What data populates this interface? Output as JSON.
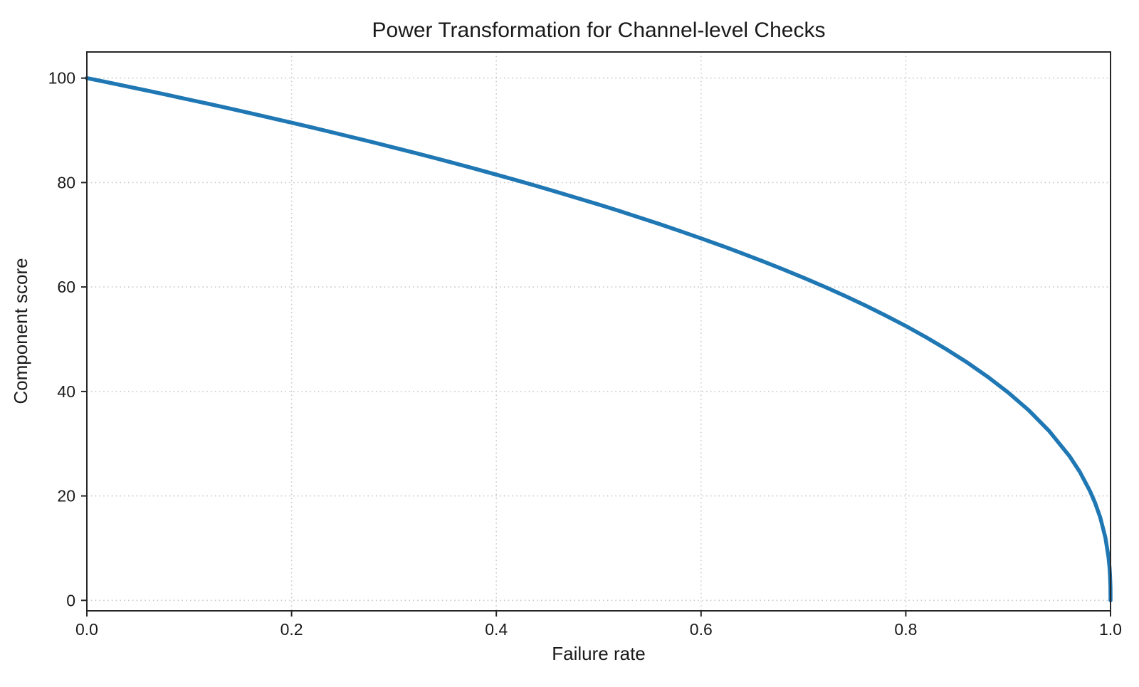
{
  "chart_data": {
    "type": "line",
    "title": "Power Transformation for Channel-level Checks",
    "xlabel": "Failure rate",
    "ylabel": "Component score",
    "xlim": [
      0,
      1
    ],
    "ylim": [
      -2,
      105
    ],
    "xtick_values": [
      0.0,
      0.2,
      0.4,
      0.6,
      0.8,
      1.0
    ],
    "xtick_labels": [
      "0.0",
      "0.2",
      "0.4",
      "0.6",
      "0.8",
      "1.0"
    ],
    "ytick_values": [
      0,
      20,
      40,
      60,
      80,
      100
    ],
    "ytick_labels": [
      "0",
      "20",
      "40",
      "60",
      "80",
      "100"
    ],
    "grid": true,
    "grid_style": "dotted",
    "legend": false,
    "line_color": "#1f77b4",
    "line_width": 5.5,
    "x": [
      0.0,
      0.02,
      0.04,
      0.06,
      0.08,
      0.1,
      0.12,
      0.14,
      0.16,
      0.18,
      0.2,
      0.22,
      0.24,
      0.26,
      0.28,
      0.3,
      0.32,
      0.34,
      0.36,
      0.38,
      0.4,
      0.42,
      0.44,
      0.46,
      0.48,
      0.5,
      0.52,
      0.54,
      0.56,
      0.58,
      0.6,
      0.62,
      0.64,
      0.66,
      0.68,
      0.7,
      0.72,
      0.74,
      0.76,
      0.78,
      0.8,
      0.82,
      0.84,
      0.86,
      0.88,
      0.9,
      0.92,
      0.94,
      0.96,
      0.97,
      0.98,
      0.985,
      0.99,
      0.995,
      0.998,
      0.999,
      0.9995,
      0.9999,
      1.0
    ],
    "y": [
      100,
      99.19,
      98.38,
      97.56,
      96.72,
      95.87,
      95.02,
      94.15,
      93.26,
      92.37,
      91.46,
      90.54,
      89.6,
      88.65,
      87.69,
      86.7,
      85.7,
      84.69,
      83.65,
      82.6,
      81.52,
      80.42,
      79.3,
      78.15,
      76.98,
      75.79,
      74.56,
      73.3,
      72.01,
      70.68,
      69.31,
      67.91,
      66.45,
      64.95,
      63.4,
      61.78,
      60.1,
      58.34,
      56.5,
      54.57,
      52.53,
      50.36,
      48.04,
      45.55,
      42.82,
      39.81,
      36.41,
      32.45,
      27.59,
      24.6,
      20.91,
      18.64,
      15.85,
      12.01,
      8.33,
      6.31,
      4.78,
      2.51,
      0.0
    ]
  }
}
